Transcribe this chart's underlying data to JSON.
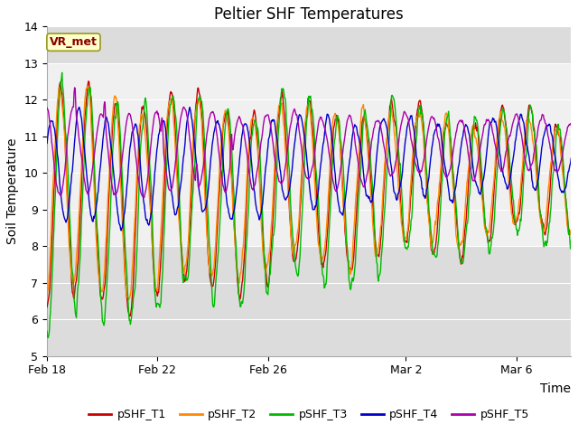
{
  "title": "Peltier SHF Temperatures",
  "xlabel": "Time",
  "ylabel": "Soil Temperature",
  "ylim": [
    5.0,
    14.0
  ],
  "yticks": [
    5.0,
    6.0,
    7.0,
    8.0,
    9.0,
    10.0,
    11.0,
    12.0,
    13.0,
    14.0
  ],
  "colors": {
    "T1": "#cc0000",
    "T2": "#ff8800",
    "T3": "#00bb00",
    "T4": "#0000cc",
    "T5": "#aa00aa"
  },
  "legend_labels": [
    "pSHF_T1",
    "pSHF_T2",
    "pSHF_T3",
    "pSHF_T4",
    "pSHF_T5"
  ],
  "vr_met_label": "VR_met",
  "background_color": "#ffffff",
  "plot_bg_color": "#dcdcdc",
  "shaded_band": [
    8.0,
    13.0
  ],
  "title_fontsize": 12,
  "axis_label_fontsize": 10,
  "tick_fontsize": 9
}
